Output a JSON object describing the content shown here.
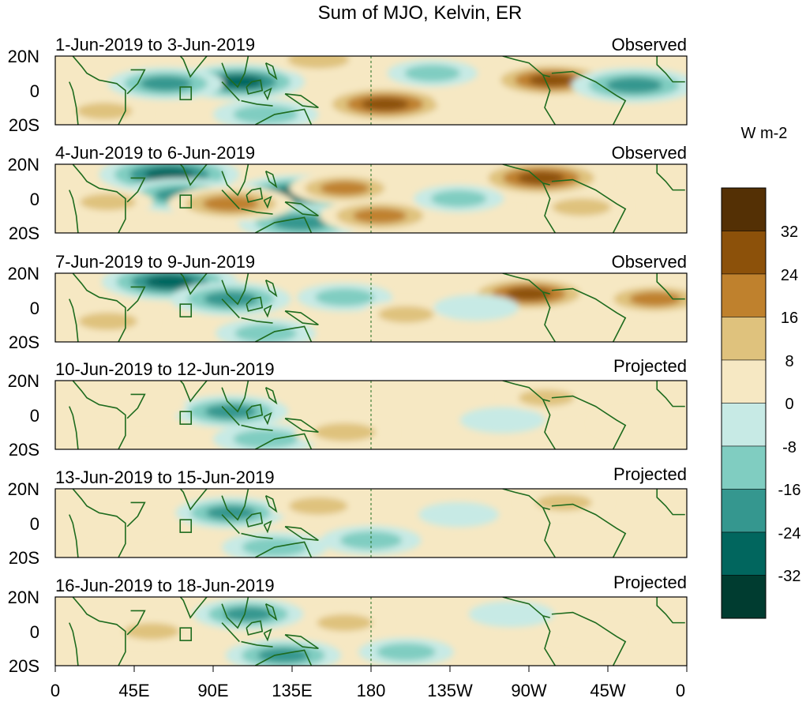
{
  "figure": {
    "title": "Sum of MJO, Kelvin, ER",
    "colorbar": {
      "units": "W m-2",
      "tick_labels": [
        "32",
        "24",
        "16",
        "8",
        "0",
        "-8",
        "-16",
        "-24",
        "-32"
      ],
      "colors": [
        "#543005",
        "#8c510a",
        "#bf812d",
        "#dfc27d",
        "#f6e8c3",
        "#c7eae5",
        "#80cdc1",
        "#35978f",
        "#01665e",
        "#003c30"
      ]
    },
    "y_tick_labels": [
      "20N",
      "0",
      "20S"
    ],
    "x_tick_labels": [
      "0",
      "45E",
      "90E",
      "135E",
      "180",
      "135W",
      "90W",
      "45W",
      "0"
    ],
    "land_outline_color": "#1e6b1e",
    "panels": [
      {
        "date_range": "1-Jun-2019 to 3-Jun-2019",
        "status": "Observed"
      },
      {
        "date_range": "4-Jun-2019 to 6-Jun-2019",
        "status": "Observed"
      },
      {
        "date_range": "7-Jun-2019 to 9-Jun-2019",
        "status": "Observed"
      },
      {
        "date_range": "10-Jun-2019 to 12-Jun-2019",
        "status": "Projected"
      },
      {
        "date_range": "13-Jun-2019 to 15-Jun-2019",
        "status": "Projected"
      },
      {
        "date_range": "16-Jun-2019 to 18-Jun-2019",
        "status": "Projected"
      }
    ],
    "anomaly_blobs": [
      [
        {
          "lon": 105,
          "lat": 5,
          "v": -28
        },
        {
          "lon": 63,
          "lat": 4,
          "v": -22
        },
        {
          "lon": 150,
          "lat": 18,
          "v": 16
        },
        {
          "lon": 188,
          "lat": -8,
          "v": 30
        },
        {
          "lon": 240,
          "lat": -5,
          "v": 10
        },
        {
          "lon": 283,
          "lat": 6,
          "v": 28
        },
        {
          "lon": 330,
          "lat": 3,
          "v": -26
        },
        {
          "lon": 28,
          "lat": -12,
          "v": 12
        },
        {
          "lon": 120,
          "lat": -14,
          "v": -18
        },
        {
          "lon": 215,
          "lat": 10,
          "v": -12
        }
      ],
      [
        {
          "lon": 65,
          "lat": 14,
          "v": -32
        },
        {
          "lon": 72,
          "lat": 2,
          "v": -24
        },
        {
          "lon": 140,
          "lat": 3,
          "v": -30
        },
        {
          "lon": 140,
          "lat": -14,
          "v": -26
        },
        {
          "lon": 100,
          "lat": -3,
          "v": 26
        },
        {
          "lon": 165,
          "lat": 6,
          "v": 20
        },
        {
          "lon": 185,
          "lat": -10,
          "v": 24
        },
        {
          "lon": 277,
          "lat": 12,
          "v": 30
        },
        {
          "lon": 300,
          "lat": -5,
          "v": 14
        },
        {
          "lon": 230,
          "lat": 0,
          "v": -12
        },
        {
          "lon": 30,
          "lat": -2,
          "v": 12
        }
      ],
      [
        {
          "lon": 65,
          "lat": 15,
          "v": -30
        },
        {
          "lon": 100,
          "lat": 5,
          "v": -24
        },
        {
          "lon": 165,
          "lat": 6,
          "v": -14
        },
        {
          "lon": 30,
          "lat": -8,
          "v": 14
        },
        {
          "lon": 200,
          "lat": -4,
          "v": 12
        },
        {
          "lon": 270,
          "lat": 8,
          "v": 28
        },
        {
          "lon": 342,
          "lat": 5,
          "v": 22
        },
        {
          "lon": 120,
          "lat": -15,
          "v": -16
        },
        {
          "lon": 240,
          "lat": 0,
          "v": -10
        }
      ],
      [
        {
          "lon": 100,
          "lat": 2,
          "v": -22
        },
        {
          "lon": 120,
          "lat": -14,
          "v": -18
        },
        {
          "lon": 165,
          "lat": -10,
          "v": 16
        },
        {
          "lon": 50,
          "lat": 5,
          "v": 10
        },
        {
          "lon": 255,
          "lat": -3,
          "v": -10
        },
        {
          "lon": 280,
          "lat": 10,
          "v": 12
        },
        {
          "lon": 330,
          "lat": -5,
          "v": 10
        }
      ],
      [
        {
          "lon": 100,
          "lat": 6,
          "v": -20
        },
        {
          "lon": 125,
          "lat": -14,
          "v": -18
        },
        {
          "lon": 150,
          "lat": 10,
          "v": 14
        },
        {
          "lon": 180,
          "lat": -10,
          "v": -16
        },
        {
          "lon": 40,
          "lat": 0,
          "v": 10
        },
        {
          "lon": 290,
          "lat": 12,
          "v": 12
        },
        {
          "lon": 230,
          "lat": 5,
          "v": -8
        }
      ],
      [
        {
          "lon": 110,
          "lat": 10,
          "v": -20
        },
        {
          "lon": 130,
          "lat": -14,
          "v": -22
        },
        {
          "lon": 55,
          "lat": 0,
          "v": 12
        },
        {
          "lon": 165,
          "lat": 5,
          "v": 12
        },
        {
          "lon": 200,
          "lat": -12,
          "v": -14
        },
        {
          "lon": 260,
          "lat": 10,
          "v": -10
        },
        {
          "lon": 310,
          "lat": 0,
          "v": 10
        }
      ]
    ],
    "land_outlines": [
      [
        [
          10,
          20
        ],
        [
          15,
          14
        ],
        [
          18,
          10
        ],
        [
          25,
          6
        ],
        [
          35,
          4
        ],
        [
          40,
          0
        ],
        [
          40,
          -12
        ],
        [
          36,
          -20
        ]
      ],
      [
        [
          43,
          12
        ],
        [
          51,
          12
        ],
        [
          47,
          4
        ],
        [
          41,
          -2
        ]
      ],
      [
        [
          68,
          24
        ],
        [
          73,
          18
        ],
        [
          77,
          8
        ],
        [
          80,
          12
        ],
        [
          88,
          22
        ]
      ],
      [
        [
          95,
          16
        ],
        [
          98,
          8
        ],
        [
          104,
          2
        ],
        [
          108,
          10
        ],
        [
          110,
          20
        ]
      ],
      [
        [
          95,
          5
        ],
        [
          105,
          -6
        ]
      ],
      [
        [
          106,
          -6
        ],
        [
          115,
          -8
        ],
        [
          124,
          -9
        ]
      ],
      [
        [
          109,
          2
        ],
        [
          112,
          5
        ],
        [
          117,
          6
        ],
        [
          118,
          0
        ],
        [
          110,
          -2
        ],
        [
          109,
          2
        ]
      ],
      [
        [
          119,
          -1
        ],
        [
          123,
          1
        ],
        [
          121,
          -5
        ],
        [
          119,
          -1
        ]
      ],
      [
        [
          120,
          16
        ],
        [
          122,
          10
        ],
        [
          126,
          7
        ],
        [
          124,
          14
        ],
        [
          120,
          16
        ]
      ],
      [
        [
          131,
          -2
        ],
        [
          140,
          -3
        ],
        [
          150,
          -10
        ],
        [
          141,
          -9
        ],
        [
          131,
          -2
        ]
      ],
      [
        [
          114,
          -20
        ],
        [
          125,
          -14
        ],
        [
          136,
          -12
        ],
        [
          142,
          -11
        ],
        [
          146,
          -20
        ]
      ],
      [
        [
          255,
          20
        ],
        [
          262,
          18
        ],
        [
          270,
          16
        ],
        [
          278,
          9
        ],
        [
          282,
          8
        ]
      ],
      [
        [
          278,
          9
        ],
        [
          282,
          0
        ],
        [
          279,
          -10
        ],
        [
          285,
          -20
        ]
      ],
      [
        [
          283,
          10
        ],
        [
          295,
          11
        ],
        [
          308,
          5
        ],
        [
          320,
          -3
        ],
        [
          325,
          -6
        ],
        [
          318,
          -20
        ]
      ],
      [
        [
          343,
          20
        ],
        [
          343,
          15
        ],
        [
          348,
          10
        ],
        [
          352,
          5
        ],
        [
          359,
          5
        ]
      ],
      [
        [
          8,
          5
        ],
        [
          10,
          0
        ],
        [
          12,
          -10
        ],
        [
          13,
          -20
        ]
      ]
    ]
  }
}
